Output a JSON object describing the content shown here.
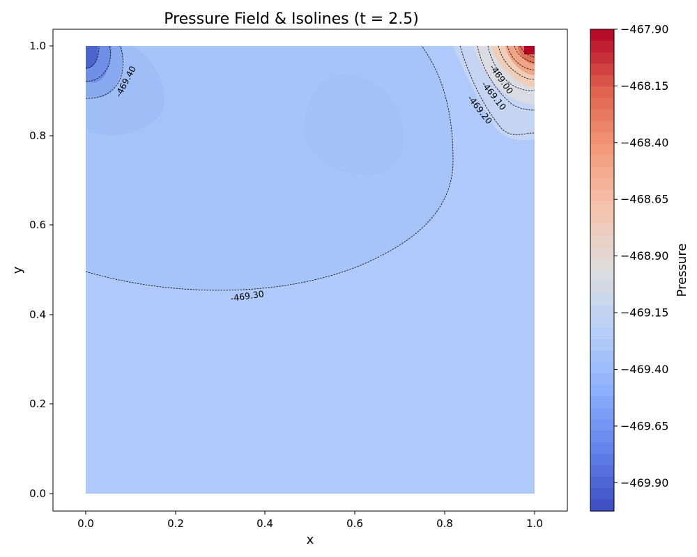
{
  "chart_data": {
    "type": "heatmap",
    "title": "Pressure Field & Isolines (t = 2.5)",
    "xlabel": "x",
    "ylabel": "y",
    "xlim": [
      -0.075,
      1.075
    ],
    "ylim": [
      -0.038,
      1.038
    ],
    "x_ticks": [
      "0.0",
      "0.2",
      "0.4",
      "0.6",
      "0.8",
      "1.0"
    ],
    "y_ticks": [
      "0.0",
      "0.2",
      "0.4",
      "0.6",
      "0.8",
      "1.0"
    ],
    "colormap": "coolwarm",
    "colorbar": {
      "label": "Pressure",
      "min": -470.025,
      "max": -467.9,
      "ticks": [
        "−467.90",
        "−468.15",
        "−468.40",
        "−468.65",
        "−468.90",
        "−469.15",
        "−469.40",
        "−469.65",
        "−469.90"
      ]
    },
    "field_levels": {
      "background": -469.32,
      "bottom_left_low": -469.95,
      "left_low_region": -469.4,
      "center_low_region": -469.37,
      "top_right_high": -467.9,
      "top_right_mid": -469.0
    },
    "isoline_labels": [
      {
        "text": "-469.40",
        "x": 0.09,
        "y": 0.92
      },
      {
        "text": "-469.30",
        "x": 0.36,
        "y": 0.44
      },
      {
        "text": "-469.00",
        "x": 0.925,
        "y": 0.925
      },
      {
        "text": "-469.10",
        "x": 0.908,
        "y": 0.888
      },
      {
        "text": "-469.20",
        "x": 0.877,
        "y": 0.857
      }
    ]
  }
}
